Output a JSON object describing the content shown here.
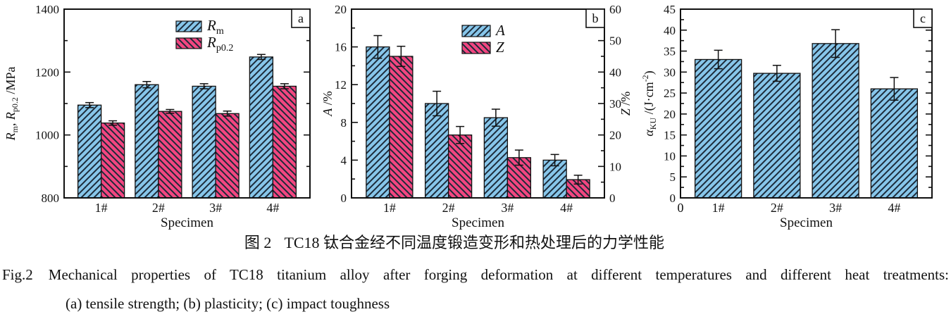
{
  "caption": {
    "cn_label": "图 2",
    "cn_text": "TC18 钛合金经不同温度锻造变形和热处理后的力学性能",
    "en_label": "Fig.2",
    "en_text": "Mechanical properties of TC18 titanium alloy after forging deformation at different temperatures and different heat treatments:",
    "en_subitems": "(a) tensile strength; (b) plasticity; (c) impact toughness"
  },
  "colors": {
    "bar_blue": "#87C6EA",
    "bar_pink": "#F24680",
    "hatch_line": "#1c2b3a",
    "axis": "#111111",
    "background": "#ffffff"
  },
  "chart_data": [
    {
      "type": "bar",
      "panel_label": "a",
      "subject": "tensile strength",
      "categories": [
        "1#",
        "2#",
        "3#",
        "4#"
      ],
      "xlabel": "Specimen",
      "ylabel_text": "Rm, Rp0.2 /MPa",
      "ylabel_segments": [
        {
          "t": "R",
          "italic": true
        },
        {
          "t": "m",
          "pos": "sub"
        },
        {
          "t": ", "
        },
        {
          "t": "R",
          "italic": true
        },
        {
          "t": "p0.2",
          "pos": "sub"
        },
        {
          "t": " /MPa"
        }
      ],
      "ylim": [
        800,
        1400
      ],
      "yticks": [
        800,
        1000,
        1200,
        1400
      ],
      "yminor_step": 100,
      "grid": false,
      "legend_position": "top-center-inside",
      "series": [
        {
          "name": "Rm",
          "legend_segments": [
            {
              "t": "R",
              "italic": true
            },
            {
              "t": "m",
              "pos": "sub"
            }
          ],
          "color": "blue",
          "hatch": "fwd",
          "values": [
            1095,
            1160,
            1155,
            1248
          ],
          "errors": [
            8,
            10,
            8,
            8
          ]
        },
        {
          "name": "Rp0.2",
          "legend_segments": [
            {
              "t": "R",
              "italic": true
            },
            {
              "t": "p0.2",
              "pos": "sub"
            }
          ],
          "color": "pink",
          "hatch": "back",
          "values": [
            1038,
            1075,
            1068,
            1155
          ],
          "errors": [
            7,
            6,
            8,
            8
          ]
        }
      ]
    },
    {
      "type": "bar",
      "panel_label": "b",
      "subject": "plasticity",
      "categories": [
        "1#",
        "2#",
        "3#",
        "4#"
      ],
      "xlabel": "Specimen",
      "ylabel_text": "A /%",
      "ylabel_segments": [
        {
          "t": "A",
          "italic": true
        },
        {
          "t": " /%"
        }
      ],
      "ylim": [
        0,
        20
      ],
      "yticks": [
        0,
        4,
        8,
        12,
        16,
        20
      ],
      "yminor_step": 2,
      "y2label_text": "Z /%",
      "y2label_segments": [
        {
          "t": "Z",
          "italic": true
        },
        {
          "t": " /%"
        }
      ],
      "y2lim": [
        0,
        60
      ],
      "y2ticks": [
        0,
        10,
        20,
        30,
        40,
        50,
        60
      ],
      "y2minor_step": 5,
      "grid": false,
      "legend_position": "top-center-inside",
      "series": [
        {
          "name": "A",
          "legend_segments": [
            {
              "t": "A",
              "italic": true
            }
          ],
          "color": "blue",
          "hatch": "fwd",
          "axis": "left",
          "values": [
            16,
            10,
            8.5,
            4
          ],
          "errors": [
            1.2,
            1.3,
            0.9,
            0.6
          ]
        },
        {
          "name": "Z",
          "legend_segments": [
            {
              "t": "Z",
              "italic": true
            }
          ],
          "color": "pink",
          "hatch": "back",
          "axis": "right",
          "values": [
            45,
            20,
            12.8,
            5.8
          ],
          "errors": [
            3.2,
            2.7,
            2.4,
            1.4
          ]
        }
      ]
    },
    {
      "type": "bar",
      "panel_label": "c",
      "subject": "impact toughness",
      "categories": [
        "1#",
        "2#",
        "3#",
        "4#"
      ],
      "xlabel": "Specimen",
      "x_origin_label": "0",
      "ylabel_text": "αKU /(J·cm−2)",
      "ylabel_segments": [
        {
          "t": "α",
          "italic": true
        },
        {
          "t": "KU",
          "pos": "sub"
        },
        {
          "t": " /(J·cm"
        },
        {
          "t": "-2",
          "pos": "sup"
        },
        {
          "t": ")"
        }
      ],
      "ylim": [
        0,
        45
      ],
      "yticks": [
        0,
        5,
        10,
        15,
        20,
        25,
        30,
        35,
        40,
        45
      ],
      "yminor_step": 2.5,
      "grid": false,
      "series": [
        {
          "name": "aKU",
          "color": "blue",
          "hatch": "fwd",
          "values": [
            33,
            29.7,
            36.8,
            26
          ],
          "errors": [
            2.2,
            1.9,
            3.3,
            2.7
          ]
        }
      ]
    }
  ]
}
